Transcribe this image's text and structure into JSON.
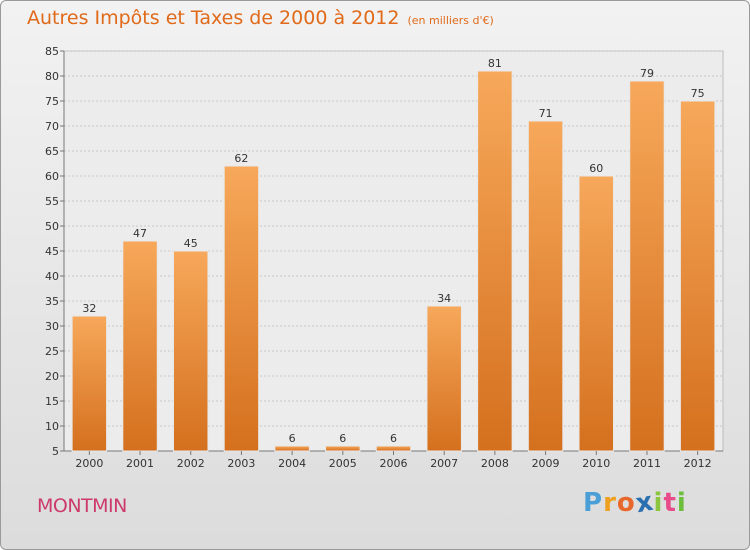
{
  "chart_data": {
    "type": "bar",
    "title": "Autres Impôts et Taxes de 2000 à 2012",
    "subtitle": "(en milliers d'€)",
    "categories": [
      "2000",
      "2001",
      "2002",
      "2003",
      "2004",
      "2005",
      "2006",
      "2007",
      "2008",
      "2009",
      "2010",
      "2011",
      "2012"
    ],
    "values": [
      32,
      47,
      45,
      62,
      6,
      6,
      6,
      34,
      81,
      71,
      60,
      79,
      75
    ],
    "data_labels": [
      "32",
      "47",
      "45",
      "62",
      "6",
      "6",
      "6",
      "34",
      "81",
      "71",
      "60",
      "79",
      "75"
    ],
    "yticks": [
      "5",
      "10",
      "15",
      "20",
      "25",
      "30",
      "35",
      "40",
      "45",
      "50",
      "55",
      "60",
      "65",
      "70",
      "75",
      "80",
      "85"
    ],
    "ylim": [
      5,
      85
    ],
    "grid": true,
    "legend": "none",
    "colors": {
      "bar_light": "#f7a85a",
      "bar_dark": "#d4701e",
      "title": "#e06a1a"
    }
  },
  "footer": {
    "town": "MONTMIN",
    "logo_letters": [
      "P",
      "r",
      "o",
      "x",
      "i",
      "t",
      "i"
    ],
    "logo_colors": [
      "#4a9fd6",
      "#f0a020",
      "#e8672a",
      "#2a6fb0",
      "#8cc63e",
      "#e84b8a",
      "#6bbf3a"
    ]
  }
}
